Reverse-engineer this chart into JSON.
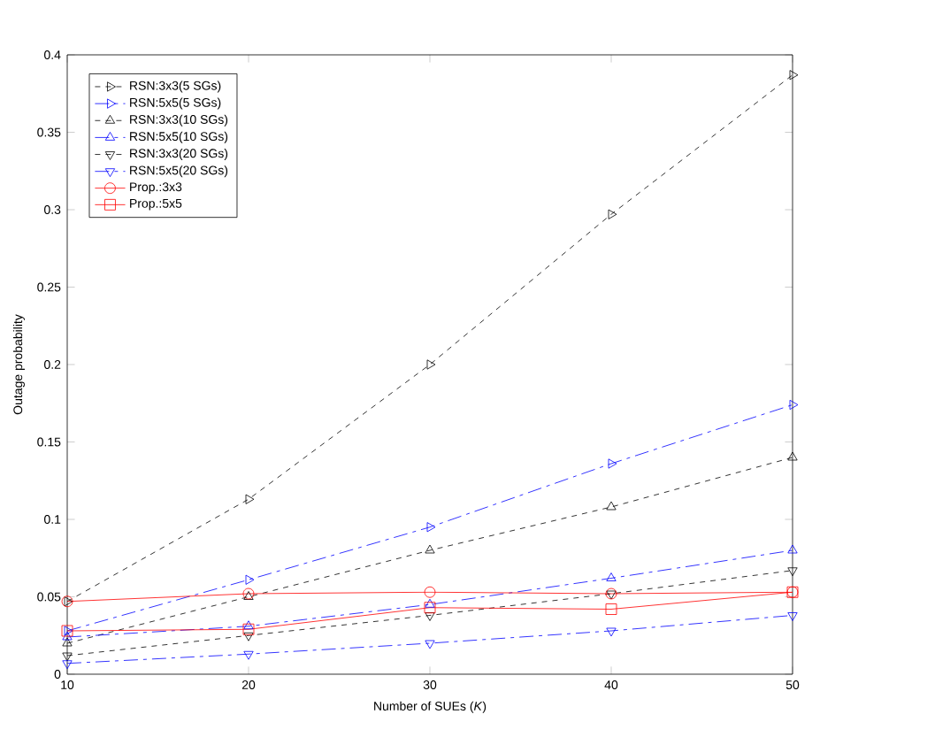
{
  "chart_data": {
    "type": "line",
    "xlabel": "Number of SUEs (*K*)",
    "ylabel": "Outage probability",
    "x": [
      10,
      20,
      30,
      40,
      50
    ],
    "xlim": [
      10,
      50
    ],
    "ylim": [
      0,
      0.4
    ],
    "xticks": [
      10,
      20,
      30,
      40,
      50
    ],
    "yticks": [
      0,
      0.05,
      0.1,
      0.15,
      0.2,
      0.25,
      0.3,
      0.35,
      0.4
    ],
    "legend": "top left",
    "grid": false,
    "series": [
      {
        "name": "RSN:3x3(5 SGs)",
        "color": "#000000",
        "marker": "triangle-right",
        "line_style": "dashed",
        "values": [
          0.047,
          0.113,
          0.2,
          0.297,
          0.387
        ]
      },
      {
        "name": "RSN:5x5(5 SGs)",
        "color": "#0000ff",
        "marker": "triangle-right",
        "line_style": "dashdot",
        "values": [
          0.028,
          0.061,
          0.095,
          0.136,
          0.174
        ]
      },
      {
        "name": "RSN:3x3(10 SGs)",
        "color": "#000000",
        "marker": "triangle",
        "line_style": "dashed",
        "values": [
          0.02,
          0.05,
          0.08,
          0.108,
          0.14
        ]
      },
      {
        "name": "RSN:5x5(10 SGs)",
        "color": "#0000ff",
        "marker": "triangle",
        "line_style": "dashdot",
        "values": [
          0.024,
          0.031,
          0.045,
          0.062,
          0.08
        ]
      },
      {
        "name": "RSN:3x3(20 SGs)",
        "color": "#000000",
        "marker": "triangle-down",
        "line_style": "dashed",
        "values": [
          0.012,
          0.025,
          0.038,
          0.052,
          0.067
        ]
      },
      {
        "name": "RSN:5x5(20 SGs)",
        "color": "#0000ff",
        "marker": "triangle-down",
        "line_style": "dashdot",
        "values": [
          0.007,
          0.013,
          0.02,
          0.028,
          0.038
        ]
      },
      {
        "name": "Prop.:3x3",
        "color": "#ff0000",
        "marker": "circle",
        "line_style": "solid",
        "values": [
          0.047,
          0.052,
          0.053,
          0.052,
          0.053
        ]
      },
      {
        "name": "Prop.:5x5",
        "color": "#ff0000",
        "marker": "square",
        "line_style": "solid",
        "values": [
          0.028,
          0.029,
          0.043,
          0.042,
          0.053
        ]
      }
    ]
  }
}
